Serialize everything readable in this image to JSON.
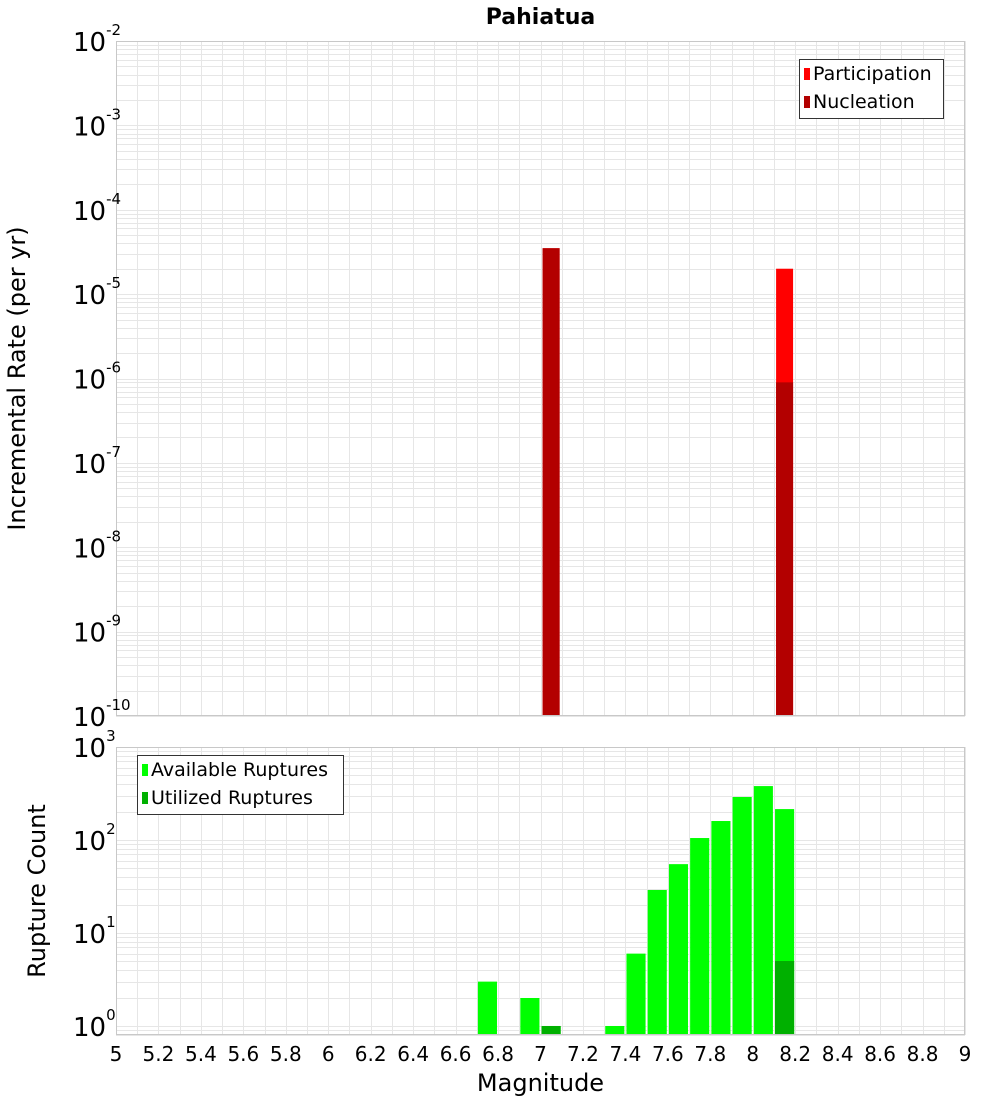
{
  "chart_data": [
    {
      "type": "bar",
      "title": "Pahiatua",
      "xlabel": "",
      "ylabel": "Incremental Rate (per yr)",
      "xlim": [
        5,
        9
      ],
      "ylim": [
        1e-10,
        0.01
      ],
      "yscale": "log",
      "grid": true,
      "legend_position": "top-right",
      "bar_width": 0.08,
      "y_tick_exponents": [
        "-10",
        "-9",
        "-8",
        "-7",
        "-6",
        "-5",
        "-4",
        "-3",
        "-2"
      ],
      "y_tick_base": "10",
      "series": [
        {
          "name": "Participation",
          "color": "#ff0000",
          "x": [
            7.05,
            8.15
          ],
          "values": [
            3.5e-05,
            2e-05
          ]
        },
        {
          "name": "Nucleation",
          "color": "#b30000",
          "x": [
            7.05,
            8.15
          ],
          "values": [
            3.5e-05,
            9e-07
          ]
        }
      ]
    },
    {
      "type": "bar",
      "title": "",
      "xlabel": "Magnitude",
      "ylabel": "Rupture Count",
      "xlim": [
        5,
        9
      ],
      "ylim": [
        0.8,
        1000
      ],
      "yscale": "log",
      "grid": true,
      "legend_position": "top-left",
      "bar_width": 0.09,
      "x_ticks": [
        "5",
        "5.2",
        "5.4",
        "5.6",
        "5.8",
        "6",
        "6.2",
        "6.4",
        "6.6",
        "6.8",
        "7",
        "7.2",
        "7.4",
        "7.6",
        "7.8",
        "8",
        "8.2",
        "8.4",
        "8.6",
        "8.8",
        "9"
      ],
      "y_tick_exponents": [
        "0",
        "1",
        "2",
        "3"
      ],
      "y_tick_base": "10",
      "series": [
        {
          "name": "Available Ruptures",
          "color": "#00ff00",
          "x": [
            6.75,
            6.95,
            7.05,
            7.35,
            7.45,
            7.55,
            7.65,
            7.75,
            7.85,
            7.95,
            8.05,
            8.15
          ],
          "values": [
            3,
            2,
            1,
            1,
            6,
            29,
            55,
            105,
            160,
            290,
            380,
            215
          ]
        },
        {
          "name": "Utilized Ruptures",
          "color": "#00b000",
          "x": [
            7.05,
            8.15
          ],
          "values": [
            1,
            5
          ]
        }
      ]
    }
  ]
}
